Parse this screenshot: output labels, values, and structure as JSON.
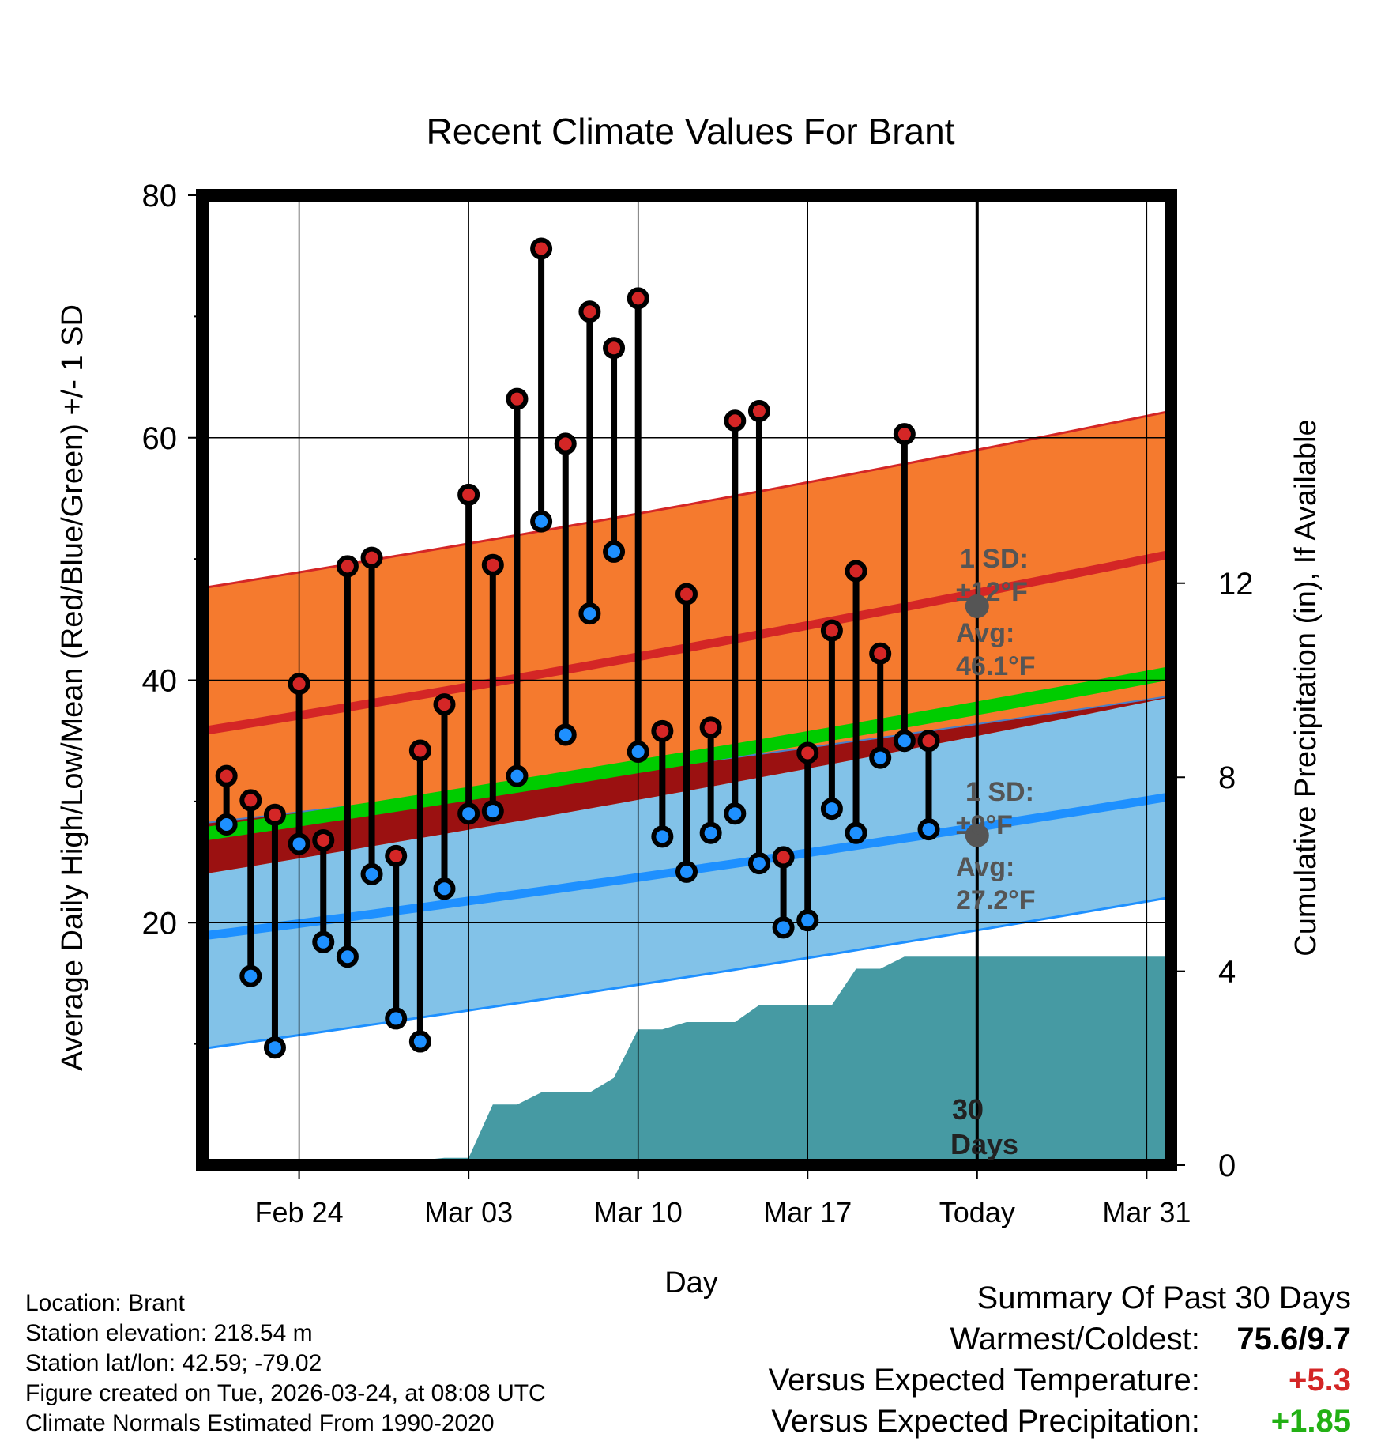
{
  "chart_data": {
    "type": "line",
    "title": "Recent Climate Values For Brant",
    "xlabel": "Day",
    "ylabel_left": "Average Daily High/Low/Mean (Red/Blue/Green) +/- 1 SD",
    "ylabel_right": "Cumulative Precipitation (in), If Available",
    "xlim": [
      -1,
      39
    ],
    "ylim": [
      0,
      80
    ],
    "y2lim": [
      0,
      20
    ],
    "yticks": [
      20,
      40,
      60,
      80
    ],
    "y2ticks": [
      0,
      4,
      8,
      12
    ],
    "xticks": [
      {
        "day": 3,
        "label": "Feb 24"
      },
      {
        "day": 10,
        "label": "Mar 03"
      },
      {
        "day": 17,
        "label": "Mar 10"
      },
      {
        "day": 24,
        "label": "Mar 17"
      },
      {
        "day": 31,
        "label": "Today"
      },
      {
        "day": 38,
        "label": "Mar 31"
      }
    ],
    "today_day": 31,
    "period_label": [
      "30",
      "Days"
    ],
    "normal_high": {
      "start": 35.8,
      "end": 50.4,
      "sd_start": 11.8,
      "sd_end": 11.8,
      "today_avg": "46.1",
      "sd": "12",
      "color": "#d42626",
      "band_color": "#f57a2e"
    },
    "normal_low": {
      "start": 18.9,
      "end": 30.4,
      "sd_start": 9.3,
      "sd_end": 8.3,
      "today_avg": "27.2",
      "sd": "9",
      "color": "#1e90ff",
      "band_color": "#82c2e8"
    },
    "normal_mean": {
      "start": 27.3,
      "end": 40.6,
      "color": "#00cc00"
    },
    "observations": [
      {
        "day": 0,
        "high": 32.1,
        "low": 28.1
      },
      {
        "day": 1,
        "high": 30.1,
        "low": 15.6
      },
      {
        "day": 2,
        "high": 28.9,
        "low": 9.7
      },
      {
        "day": 3,
        "high": 39.7,
        "low": 26.5
      },
      {
        "day": 4,
        "high": 26.8,
        "low": 18.4
      },
      {
        "day": 5,
        "high": 49.4,
        "low": 17.2
      },
      {
        "day": 6,
        "high": 50.1,
        "low": 24.0
      },
      {
        "day": 7,
        "high": 25.5,
        "low": 12.1
      },
      {
        "day": 8,
        "high": 34.2,
        "low": 10.2
      },
      {
        "day": 9,
        "high": 38.0,
        "low": 22.8
      },
      {
        "day": 10,
        "high": 55.3,
        "low": 29.0
      },
      {
        "day": 11,
        "high": 49.5,
        "low": 29.2
      },
      {
        "day": 12,
        "high": 63.2,
        "low": 32.1
      },
      {
        "day": 13,
        "high": 75.6,
        "low": 53.1
      },
      {
        "day": 14,
        "high": 59.5,
        "low": 35.5
      },
      {
        "day": 15,
        "high": 70.4,
        "low": 45.5
      },
      {
        "day": 16,
        "high": 67.4,
        "low": 50.6
      },
      {
        "day": 17,
        "high": 71.5,
        "low": 34.1
      },
      {
        "day": 18,
        "high": 35.8,
        "low": 27.1
      },
      {
        "day": 19,
        "high": 47.1,
        "low": 24.2
      },
      {
        "day": 20,
        "high": 36.1,
        "low": 27.4
      },
      {
        "day": 21,
        "high": 61.4,
        "low": 29.0
      },
      {
        "day": 22,
        "high": 62.2,
        "low": 24.9
      },
      {
        "day": 23,
        "high": 25.4,
        "low": 19.6
      },
      {
        "day": 24,
        "high": 34.0,
        "low": 20.2
      },
      {
        "day": 25,
        "high": 44.1,
        "low": 29.4
      },
      {
        "day": 26,
        "high": 49.0,
        "low": 27.4
      },
      {
        "day": 27,
        "high": 42.2,
        "low": 33.6
      },
      {
        "day": 28,
        "high": 60.3,
        "low": 35.0
      },
      {
        "day": 29,
        "high": 35.0,
        "low": 27.7
      }
    ],
    "precipitation": {
      "days": [
        -1,
        0,
        1,
        2,
        3,
        4,
        5,
        6,
        7,
        8,
        9,
        10,
        11,
        12,
        13,
        14,
        15,
        16,
        17,
        18,
        19,
        20,
        21,
        22,
        23,
        24,
        25,
        26,
        27,
        28,
        29,
        30,
        39
      ],
      "values": [
        0.0,
        0.0,
        0.02,
        0.05,
        0.08,
        0.08,
        0.08,
        0.08,
        0.09,
        0.1,
        0.15,
        0.15,
        1.25,
        1.25,
        1.5,
        1.5,
        1.5,
        1.8,
        2.8,
        2.8,
        2.95,
        2.95,
        2.95,
        3.3,
        3.3,
        3.3,
        3.3,
        4.05,
        4.05,
        4.3,
        4.3,
        4.3,
        4.3
      ],
      "color": "#469aa3"
    }
  },
  "annotations": {
    "high_sd_label": "1 SD:",
    "high_sd_value": "±12°F",
    "high_avg_label": "Avg:",
    "high_avg_value": "46.1°F",
    "low_sd_label": "1 SD:",
    "low_sd_value": "±9°F",
    "low_avg_label": "Avg:",
    "low_avg_value": "27.2°F"
  },
  "info": {
    "location": "Location: Brant",
    "elevation": "Station elevation: 218.54 m",
    "latlon": "Station lat/lon: 42.59; -79.02",
    "created": "Figure created on Tue, 2026-03-24, at 08:08 UTC",
    "normals": "Climate Normals Estimated From 1990-2020"
  },
  "summary": {
    "heading": "Summary Of Past 30 Days",
    "warmest_label": "Warmest/Coldest:",
    "warmest_value": "75.6/9.7",
    "temp_label": "Versus Expected Temperature:",
    "temp_value": "+5.3",
    "temp_color": "#d42626",
    "precip_label": "Versus Expected Precipitation:",
    "precip_value": "+1.85",
    "precip_color": "#22b014"
  }
}
